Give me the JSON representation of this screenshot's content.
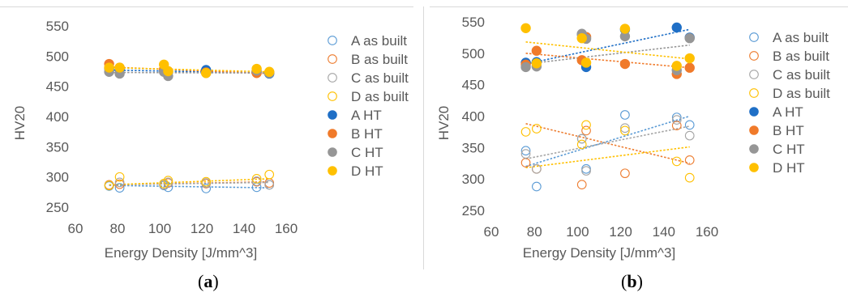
{
  "chart_data": [
    {
      "type": "scatter",
      "panel_label": "a",
      "xlabel": "Energy Density [J/mm^3]",
      "ylabel": "HV20",
      "xlim": [
        60,
        160
      ],
      "ylim": [
        250,
        550
      ],
      "xticks": [
        60,
        80,
        100,
        120,
        140,
        160
      ],
      "yticks": [
        250,
        300,
        350,
        400,
        450,
        500,
        550
      ],
      "legend_position": "right",
      "series": [
        {
          "name": "A as built",
          "color": "#5b9bd5",
          "filled": false,
          "x": [
            76,
            81,
            102,
            104,
            122,
            146,
            152
          ],
          "y": [
            285,
            282,
            286,
            283,
            281,
            283,
            287
          ],
          "trend": [
            [
              76,
              286
            ],
            [
              152,
              282
            ]
          ]
        },
        {
          "name": "B as built",
          "color": "#ed7d31",
          "filled": false,
          "x": [
            76,
            81,
            102,
            104,
            122,
            146,
            152
          ],
          "y": [
            287,
            288,
            287,
            290,
            289,
            292,
            290
          ],
          "trend": [
            [
              76,
              287
            ],
            [
              152,
              292
            ]
          ]
        },
        {
          "name": "C as built",
          "color": "#a5a5a5",
          "filled": false,
          "x": [
            76,
            81,
            102,
            104,
            122,
            146,
            152
          ],
          "y": [
            286,
            291,
            287,
            291,
            290,
            293,
            287
          ],
          "trend": [
            [
              76,
              287
            ],
            [
              152,
              291
            ]
          ]
        },
        {
          "name": "D as built",
          "color": "#ffc000",
          "filled": false,
          "x": [
            76,
            81,
            102,
            104,
            122,
            146,
            152
          ],
          "y": [
            286,
            300,
            289,
            294,
            292,
            297,
            304
          ],
          "trend": [
            [
              76,
              287
            ],
            [
              152,
              297
            ]
          ]
        },
        {
          "name": "A HT",
          "color": "#1f6fc6",
          "filled": true,
          "x": [
            76,
            81,
            102,
            104,
            122,
            146,
            152
          ],
          "y": [
            480,
            478,
            476,
            474,
            477,
            474,
            471
          ],
          "trend": [
            [
              76,
              477
            ],
            [
              152,
              472
            ]
          ]
        },
        {
          "name": "B HT",
          "color": "#f07a2a",
          "filled": true,
          "x": [
            76,
            81,
            102,
            104,
            122,
            146,
            152
          ],
          "y": [
            487,
            481,
            478,
            475,
            473,
            472,
            473
          ],
          "trend": [
            [
              76,
              482
            ],
            [
              152,
              471
            ]
          ]
        },
        {
          "name": "C HT",
          "color": "#969696",
          "filled": true,
          "x": [
            76,
            81,
            102,
            104,
            122,
            146,
            152
          ],
          "y": [
            474,
            471,
            474,
            467,
            472,
            476,
            472
          ],
          "trend": [
            [
              76,
              473
            ],
            [
              152,
              472
            ]
          ]
        },
        {
          "name": "D HT",
          "color": "#ffc000",
          "filled": true,
          "x": [
            76,
            81,
            102,
            104,
            122,
            146,
            152
          ],
          "y": [
            481,
            481,
            486,
            475,
            472,
            479,
            474
          ],
          "trend": [
            [
              76,
              481
            ],
            [
              152,
              474
            ]
          ]
        }
      ]
    },
    {
      "type": "scatter",
      "panel_label": "b",
      "xlabel": "Energy Density [J/mm^3]",
      "ylabel": "HV20",
      "xlim": [
        60,
        160
      ],
      "ylim": [
        250,
        550
      ],
      "xticks": [
        60,
        80,
        100,
        120,
        140,
        160
      ],
      "yticks": [
        250,
        300,
        350,
        400,
        450,
        500,
        550
      ],
      "legend_position": "right",
      "series": [
        {
          "name": "A as built",
          "color": "#5b9bd5",
          "filled": false,
          "x": [
            76,
            81,
            102,
            104,
            122,
            146,
            152
          ],
          "y": [
            345,
            288,
            364,
            316,
            402,
            398,
            386
          ],
          "trend": [
            [
              76,
              320
            ],
            [
              152,
              400
            ]
          ]
        },
        {
          "name": "B as built",
          "color": "#ed7d31",
          "filled": false,
          "x": [
            76,
            81,
            102,
            104,
            122,
            146,
            152
          ],
          "y": [
            326,
            316,
            291,
            377,
            309,
            385,
            330
          ],
          "trend": [
            [
              76,
              388
            ],
            [
              152,
              325
            ]
          ]
        },
        {
          "name": "C as built",
          "color": "#a5a5a5",
          "filled": false,
          "x": [
            76,
            81,
            102,
            104,
            122,
            146,
            152
          ],
          "y": [
            340,
            316,
            364,
            313,
            381,
            394,
            369
          ],
          "trend": [
            [
              76,
              332
            ],
            [
              152,
              384
            ]
          ]
        },
        {
          "name": "D as built",
          "color": "#ffc000",
          "filled": false,
          "x": [
            76,
            81,
            102,
            104,
            122,
            146,
            152
          ],
          "y": [
            375,
            380,
            355,
            386,
            377,
            328,
            302
          ],
          "trend": [
            [
              76,
              318
            ],
            [
              152,
              351
            ]
          ]
        },
        {
          "name": "A HT",
          "color": "#1f6fc6",
          "filled": true,
          "x": [
            76,
            81,
            102,
            104,
            122,
            146,
            152
          ],
          "y": [
            485,
            486,
            530,
            478,
            538,
            541,
            525
          ],
          "trend": [
            [
              76,
              483
            ],
            [
              152,
              538
            ]
          ]
        },
        {
          "name": "B HT",
          "color": "#f07a2a",
          "filled": true,
          "x": [
            76,
            81,
            102,
            104,
            122,
            146,
            152
          ],
          "y": [
            482,
            504,
            489,
            526,
            483,
            467,
            477
          ],
          "trend": [
            [
              76,
              500
            ],
            [
              152,
              477
            ]
          ]
        },
        {
          "name": "C HT",
          "color": "#969696",
          "filled": true,
          "x": [
            76,
            81,
            102,
            104,
            122,
            146,
            152
          ],
          "y": [
            478,
            479,
            531,
            523,
            527,
            473,
            524
          ],
          "trend": [
            [
              76,
              483
            ],
            [
              152,
              513
            ]
          ]
        },
        {
          "name": "D HT",
          "color": "#ffc000",
          "filled": true,
          "x": [
            76,
            81,
            102,
            104,
            122,
            146,
            152
          ],
          "y": [
            540,
            484,
            524,
            485,
            539,
            480,
            492
          ],
          "trend": [
            [
              76,
              518
            ],
            [
              152,
              491
            ]
          ]
        }
      ]
    }
  ]
}
